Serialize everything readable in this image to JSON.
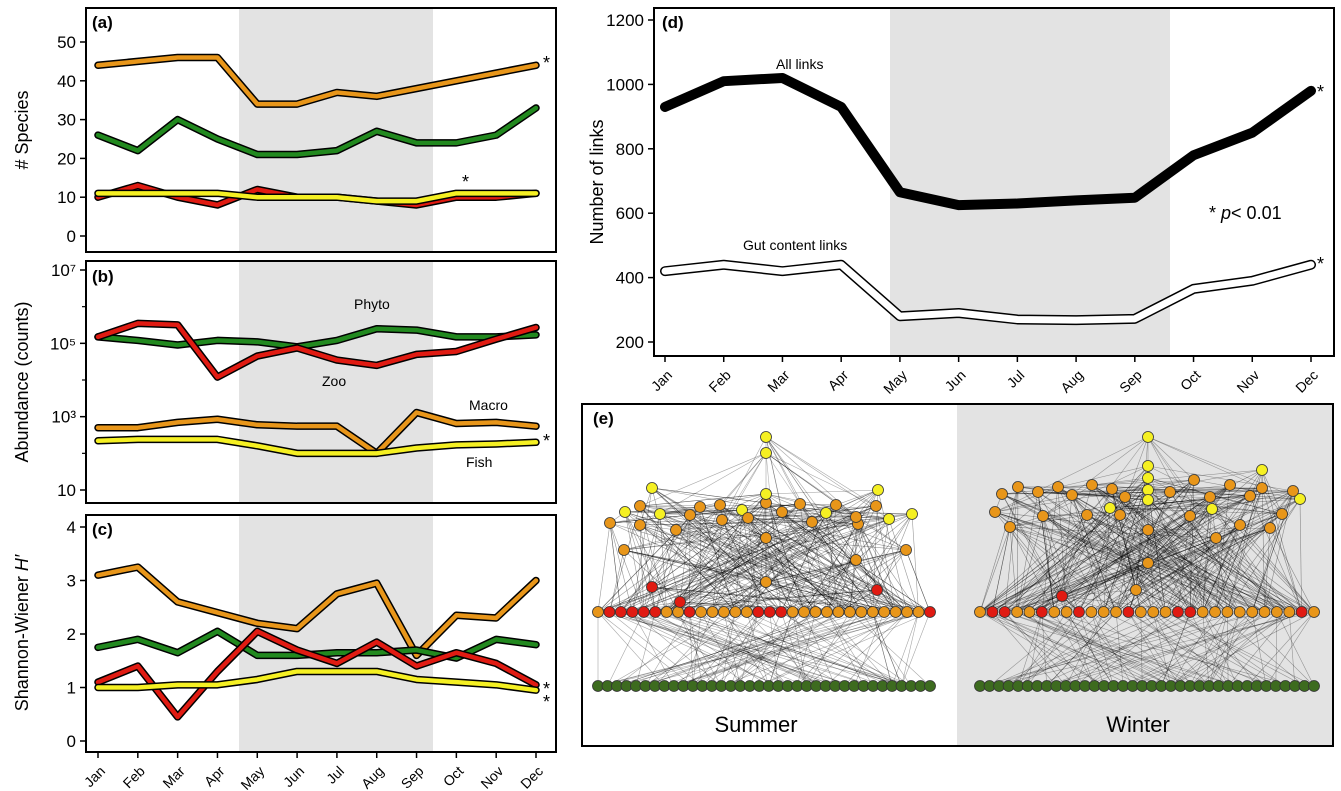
{
  "months": [
    "Jan",
    "Feb",
    "Mar",
    "Apr",
    "May",
    "Jun",
    "Jul",
    "Aug",
    "Sep",
    "Oct",
    "Nov",
    "Dec"
  ],
  "colors": {
    "fish": "#f5f023",
    "macro": "#e8961a",
    "zoo": "#e01b12",
    "phyto": "#22891f",
    "basal_node": "#3d6b1f",
    "shade": "#e3e3e3",
    "edge": "#000000"
  },
  "chart_data": [
    {
      "panel": "(a)",
      "type": "line",
      "ylabel": "# Species",
      "ylim": [
        0,
        52
      ],
      "yticks": [
        "0",
        "10",
        "20",
        "30",
        "40",
        "50"
      ],
      "shaded_months": [
        "May",
        "Sep"
      ],
      "series": [
        {
          "key": "macro",
          "values": [
            44,
            45,
            46,
            46,
            34,
            34,
            37,
            36,
            38,
            40,
            42,
            44
          ],
          "marker": "*"
        },
        {
          "key": "phyto",
          "values": [
            26,
            22,
            30,
            25,
            21,
            21,
            22,
            27,
            24,
            24,
            26,
            33
          ]
        },
        {
          "key": "zoo",
          "values": [
            10,
            13,
            10,
            8,
            12,
            10,
            10,
            9,
            8,
            10,
            10,
            11
          ]
        },
        {
          "key": "fish",
          "values": [
            11,
            11,
            11,
            11,
            10,
            10,
            10,
            9,
            9,
            11,
            11,
            11
          ],
          "marker": "*"
        }
      ]
    },
    {
      "panel": "(b)",
      "type": "line",
      "ylabel": "Abundance (counts)",
      "yscale": "log",
      "ylim": [
        6,
        10000000
      ],
      "yticks": [
        {
          "value": 10,
          "label": "10"
        },
        {
          "value": 1000,
          "label": "10³"
        },
        {
          "value": 100000,
          "label": "10⁵"
        },
        {
          "value": 10000000,
          "label": "10⁷"
        }
      ],
      "shaded_months": [
        "May",
        "Sep"
      ],
      "series": [
        {
          "name": "Phyto",
          "key": "phyto",
          "values": [
            150000,
            120000,
            90000,
            120000,
            110000,
            80000,
            120000,
            250000,
            230000,
            150000,
            150000,
            170000
          ]
        },
        {
          "name": "Zoo",
          "key": "zoo",
          "values": [
            150000,
            350000,
            320000,
            12000,
            45000,
            75000,
            35000,
            25000,
            50000,
            60000,
            130000,
            270000
          ]
        },
        {
          "name": "Macro",
          "key": "macro",
          "values": [
            500,
            500,
            700,
            850,
            600,
            550,
            550,
            100,
            1300,
            650,
            700,
            550
          ]
        },
        {
          "name": "Fish",
          "key": "fish",
          "values": [
            220,
            240,
            240,
            240,
            160,
            100,
            100,
            100,
            140,
            170,
            180,
            200
          ],
          "marker": "*"
        }
      ]
    },
    {
      "panel": "(c)",
      "type": "line",
      "ylabel": "Shannon-Wiener",
      "ylabel_italic": "H′",
      "ylim": [
        -0.1,
        4.1
      ],
      "yticks": [
        "0",
        "1",
        "2",
        "3",
        "4"
      ],
      "shaded_months": [
        "May",
        "Sep"
      ],
      "series": [
        {
          "key": "macro",
          "values": [
            3.1,
            3.25,
            2.6,
            2.4,
            2.2,
            2.1,
            2.75,
            2.95,
            1.6,
            2.35,
            2.3,
            3.0
          ]
        },
        {
          "key": "phyto",
          "values": [
            1.75,
            1.9,
            1.65,
            2.05,
            1.6,
            1.6,
            1.65,
            1.65,
            1.7,
            1.55,
            1.9,
            1.8
          ]
        },
        {
          "key": "zoo",
          "values": [
            1.1,
            1.4,
            0.45,
            1.3,
            2.05,
            1.7,
            1.45,
            1.85,
            1.4,
            1.65,
            1.45,
            1.05
          ],
          "marker": "*"
        },
        {
          "key": "fish",
          "values": [
            1.0,
            1.0,
            1.05,
            1.05,
            1.15,
            1.3,
            1.3,
            1.3,
            1.15,
            1.1,
            1.05,
            0.95
          ],
          "marker": "*"
        }
      ]
    },
    {
      "panel": "(d)",
      "type": "line",
      "ylabel": "Number of links",
      "ylim": [
        180,
        1220
      ],
      "yticks": [
        "200",
        "400",
        "600",
        "800",
        "1000",
        "1200"
      ],
      "shaded_months": [
        "May",
        "Sep"
      ],
      "annotation": {
        "star": "*",
        "p_italic": "p",
        "rest": "< 0.01"
      },
      "series": [
        {
          "name": "All links",
          "style": "thick",
          "values": [
            930,
            1010,
            1020,
            930,
            665,
            625,
            630,
            640,
            648,
            780,
            850,
            980
          ],
          "marker": "*"
        },
        {
          "name": "Gut content links",
          "style": "outline",
          "values": [
            420,
            440,
            420,
            440,
            280,
            290,
            270,
            268,
            272,
            365,
            390,
            440
          ],
          "marker": "*"
        }
      ]
    }
  ],
  "network": {
    "panel": "(e)",
    "summer_label": "Summer",
    "winter_label": "Winter"
  }
}
